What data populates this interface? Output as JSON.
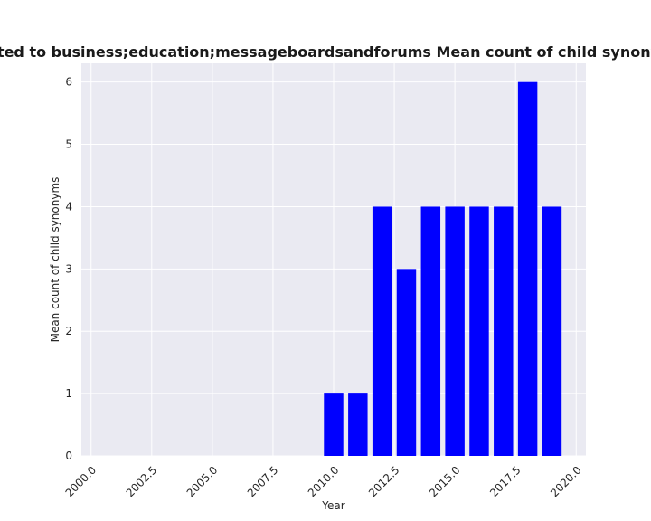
{
  "chart_data": {
    "type": "bar",
    "title": "Websites related to business;education;messageboardsandforums Mean count of child synonyms in products",
    "xlabel": "Year",
    "ylabel": "Mean count of child synonyms",
    "x": [
      2010,
      2011,
      2012,
      2013,
      2014,
      2015,
      2016,
      2017,
      2018,
      2019
    ],
    "values": [
      1,
      1,
      4,
      3,
      4,
      4,
      4,
      4,
      6,
      4
    ],
    "xlim": [
      1999.6,
      2020.4
    ],
    "ylim": [
      0,
      6.3
    ],
    "xticks": [
      2000.0,
      2002.5,
      2005.0,
      2007.5,
      2010.0,
      2012.5,
      2015.0,
      2017.5,
      2020.0
    ],
    "xtick_labels": [
      "2000.0",
      "2002.5",
      "2005.0",
      "2007.5",
      "2010.0",
      "2012.5",
      "2015.0",
      "2017.5",
      "2020.0"
    ],
    "yticks": [
      0,
      1,
      2,
      3,
      4,
      5,
      6
    ],
    "ytick_labels": [
      "0",
      "1",
      "2",
      "3",
      "4",
      "5",
      "6"
    ],
    "bar_color": "#0000ff",
    "grid": true,
    "background_color": "#eaeaf2",
    "grid_color": "#ffffff"
  }
}
